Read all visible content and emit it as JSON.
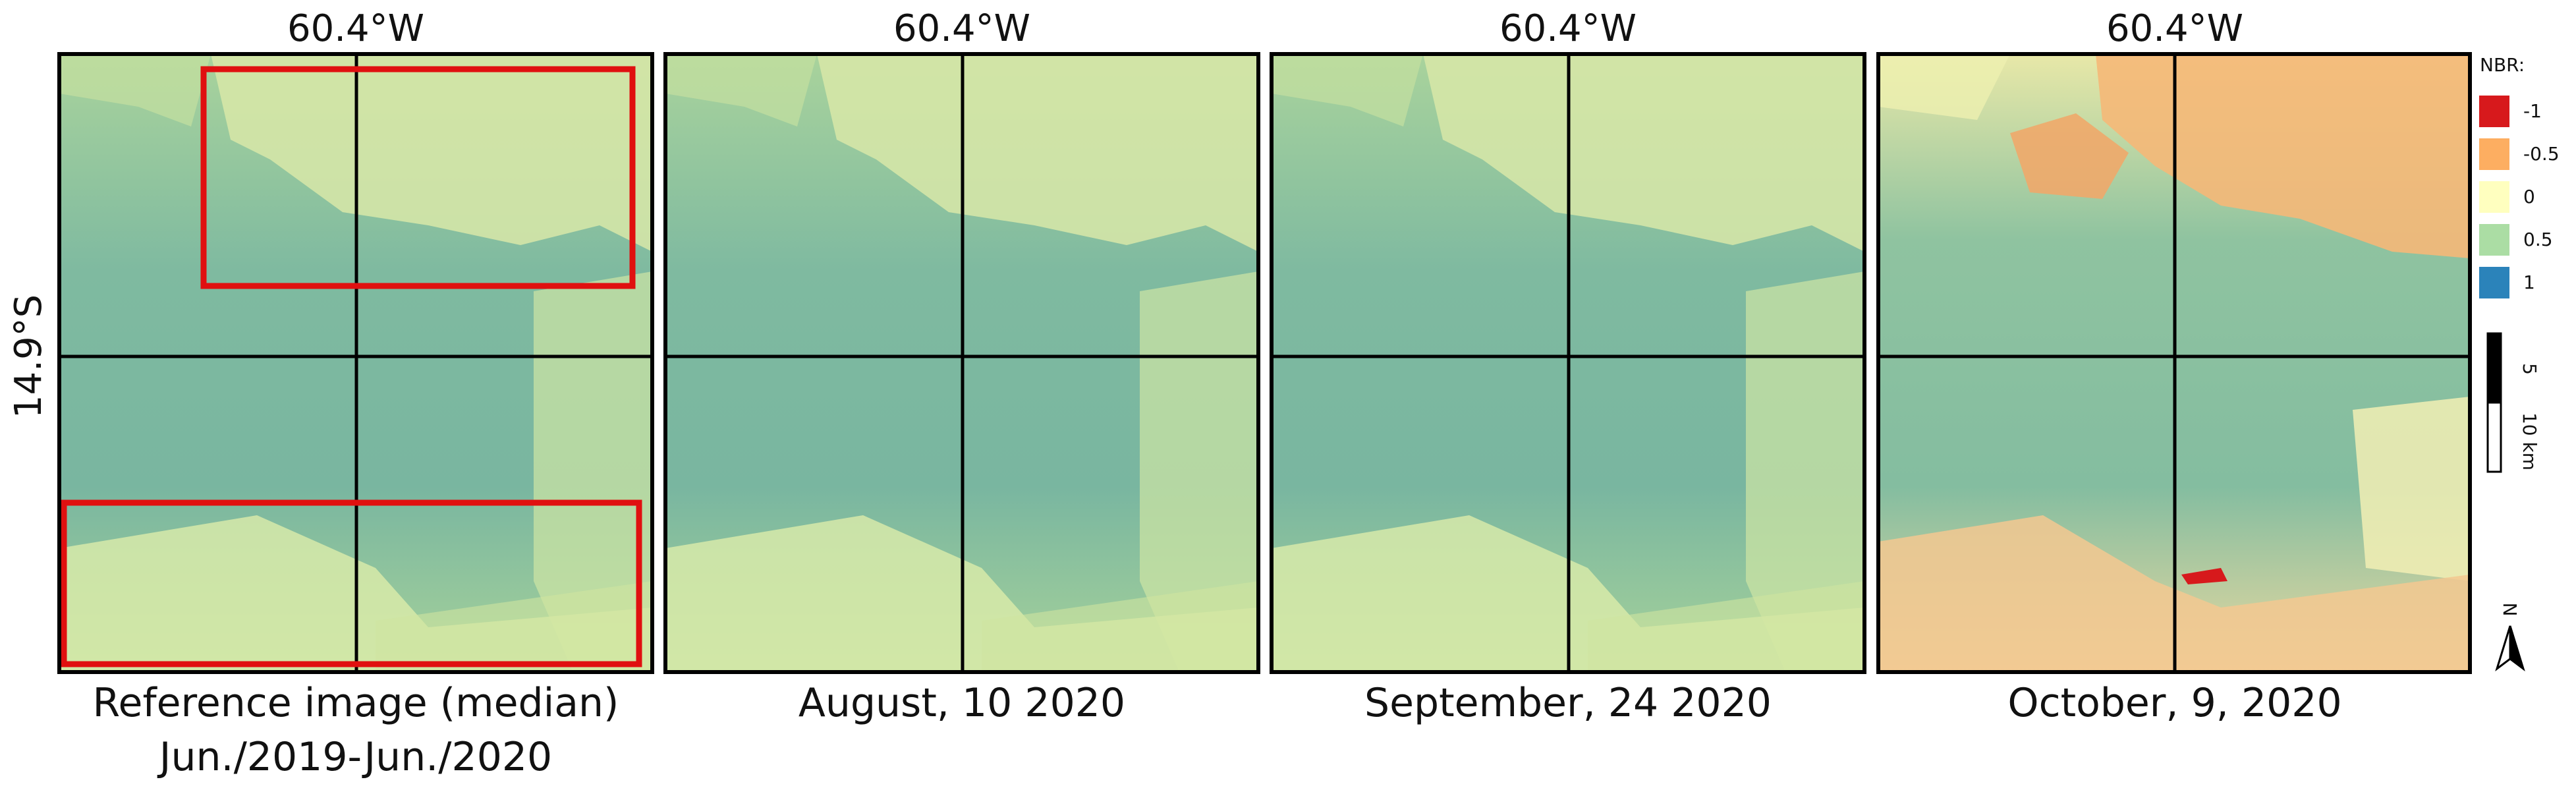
{
  "panels": [
    {
      "top_label": "60.4°W",
      "caption": [
        "Reference image (median)",
        "Jun./2019-Jun./2020"
      ]
    },
    {
      "top_label": "60.4°W",
      "caption": [
        "August, 10 2020"
      ]
    },
    {
      "top_label": "60.4°W",
      "caption": [
        "September, 24 2020"
      ]
    },
    {
      "top_label": "60.4°W",
      "caption": [
        "October, 9, 2020"
      ]
    }
  ],
  "left_label": "14.9°S",
  "legend": {
    "title": "NBR:",
    "items": [
      {
        "value": -1,
        "color": "#d7191c"
      },
      {
        "value": -0.5,
        "color": "#fdae61"
      },
      {
        "value": 0,
        "color": "#ffffbf"
      },
      {
        "value": 0.5,
        "color": "#abdda4"
      },
      {
        "value": 1,
        "color": "#2b83ba"
      }
    ]
  },
  "scale_bar": {
    "labels": [
      "5",
      "10 km"
    ]
  },
  "north_arrow": "N"
}
